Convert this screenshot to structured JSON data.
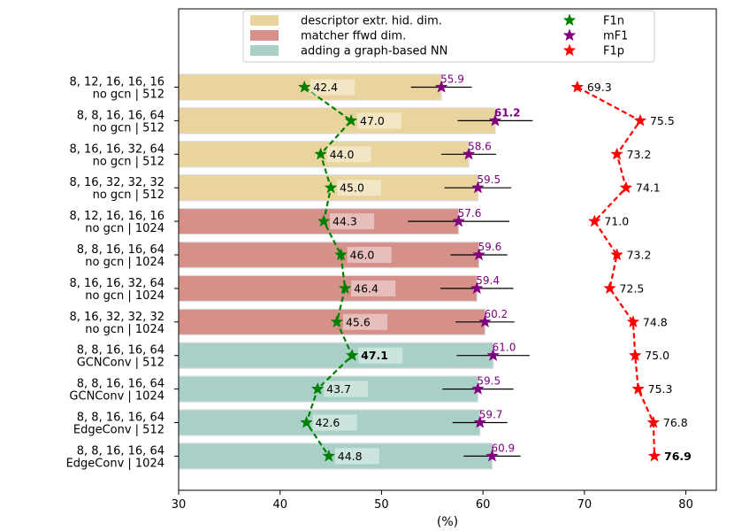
{
  "chart_data": {
    "type": "bar",
    "orientation": "horizontal",
    "xlabel": "(%)",
    "xlim": [
      30,
      83
    ],
    "xticks": [
      30,
      40,
      50,
      60,
      70,
      80
    ],
    "categories": [
      "8, 12, 16, 16, 16\nno gcn | 512",
      "8, 8, 16, 16, 64\nno gcn | 512",
      "8, 16, 16, 32, 64\nno gcn | 512",
      "8, 16, 32, 32, 32\nno gcn | 512",
      "8, 12, 16, 16, 16\nno gcn | 1024",
      "8, 8, 16, 16, 64\nno gcn | 1024",
      "8, 16, 16, 32, 64\nno gcn | 1024",
      "8, 16, 32, 32, 32\nno gcn | 1024",
      "8, 8, 16, 16, 64\nGCNConv |  512",
      "8, 8, 16, 16, 64\nGCNConv | 1024",
      "8, 8, 16, 16, 64\nEdgeConv |  512",
      "8, 8, 16, 16, 64\nEdgeConv | 1024"
    ],
    "groups": [
      0,
      0,
      0,
      0,
      1,
      1,
      1,
      1,
      2,
      2,
      2,
      2
    ],
    "group_colors": [
      "#e8d49c",
      "#d6908a",
      "#a8d0c6"
    ],
    "bar_values": [
      55.9,
      61.2,
      58.6,
      59.5,
      57.6,
      59.6,
      59.4,
      60.2,
      61.0,
      59.5,
      59.7,
      60.9
    ],
    "series": [
      {
        "name": "F1n",
        "color": "#008000",
        "values": [
          42.4,
          47.0,
          44.0,
          45.0,
          44.3,
          46.0,
          46.4,
          45.6,
          47.1,
          43.7,
          42.6,
          44.8
        ],
        "labels": [
          "42.4",
          "47.0",
          "44.0",
          "45.0",
          "44.3",
          "46.0",
          "46.4",
          "45.6",
          "47.1",
          "43.7",
          "42.6",
          "44.8"
        ],
        "bold_index": 8
      },
      {
        "name": "mF1",
        "color": "#800080",
        "values": [
          55.9,
          61.2,
          58.6,
          59.5,
          57.6,
          59.6,
          59.4,
          60.2,
          61.0,
          59.5,
          59.7,
          60.9
        ],
        "labels": [
          "55.9",
          "61.2",
          "58.6",
          "59.5",
          "57.6",
          "59.6",
          "59.4",
          "60.2",
          "61.0",
          "59.5",
          "59.7",
          "60.9"
        ],
        "bold_index": 1,
        "errors": [
          3.0,
          3.7,
          2.7,
          3.3,
          5.0,
          2.8,
          3.6,
          2.9,
          3.6,
          3.5,
          2.7,
          2.8
        ]
      },
      {
        "name": "F1p",
        "color": "#ff0000",
        "values": [
          69.3,
          75.5,
          73.2,
          74.1,
          71.0,
          73.2,
          72.5,
          74.8,
          75.0,
          75.3,
          76.8,
          76.9
        ],
        "labels": [
          "69.3",
          "75.5",
          "73.2",
          "74.1",
          "71.0",
          "73.2",
          "72.5",
          "74.8",
          "75.0",
          "75.3",
          "76.8",
          "76.9"
        ],
        "bold_index": 11
      }
    ],
    "legend": {
      "placement": "top",
      "bars": [
        {
          "label": "descriptor extr. hid. dim.",
          "color": "#e8d49c"
        },
        {
          "label": "matcher ffwd dim.",
          "color": "#d6908a"
        },
        {
          "label": "adding a graph-based NN",
          "color": "#a8d0c6"
        }
      ],
      "markers": [
        {
          "label": "F1n",
          "color": "#008000"
        },
        {
          "label": "mF1",
          "color": "#800080"
        },
        {
          "label": "F1p",
          "color": "#ff0000"
        }
      ]
    }
  }
}
